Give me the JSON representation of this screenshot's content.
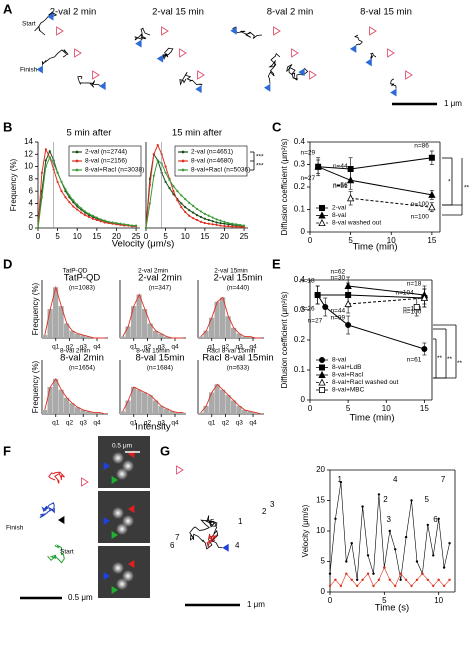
{
  "figure_labels": [
    "A",
    "B",
    "C",
    "D",
    "E",
    "F",
    "G"
  ],
  "panel_a": {
    "titles": [
      "2-val 2 min",
      "2-val 15 min",
      "8-val 2 min",
      "8-val 15 min"
    ],
    "start": "Start",
    "finish": "Finish",
    "scale": "1 μm"
  },
  "panel_f": {
    "finish": "Finish",
    "start": "Start",
    "scale": "0.5 μm",
    "image_scale": "0.5 μm"
  },
  "panel_g": {
    "scale": "1 μm",
    "labels": [
      "1",
      "2",
      "3",
      "4",
      "5",
      "6",
      "7"
    ]
  },
  "chart_data": [
    {
      "type": "line",
      "title": "5 min after",
      "ylabel": "Frequency (%)",
      "xlabel": "Velocity (μm/s)",
      "x": [
        0,
        1,
        2,
        3,
        4,
        5,
        6,
        7,
        8,
        9,
        10,
        11,
        12,
        13,
        14,
        15,
        16,
        17,
        18,
        19,
        20,
        21,
        22,
        23,
        24,
        25
      ],
      "xlim": [
        0,
        26
      ],
      "xticks": [
        0,
        5,
        10,
        15,
        20,
        25
      ],
      "ylim": [
        0,
        14
      ],
      "yticks": [
        0,
        2,
        4,
        6,
        8,
        10,
        12,
        14
      ],
      "series": [
        {
          "name": "2-val (n=2744)",
          "color": "#1b4d1b",
          "values": [
            0,
            6,
            11,
            12.5,
            11,
            9,
            7.5,
            6,
            5,
            4.2,
            3.5,
            3,
            2.5,
            2.1,
            1.8,
            1.5,
            1.3,
            1.1,
            0.9,
            0.8,
            0.7,
            0.6,
            0.5,
            0.4,
            0.3,
            0.3
          ]
        },
        {
          "name": "8-val (n=2156)",
          "color": "#e03020",
          "values": [
            0,
            9,
            12.8,
            11.5,
            9.5,
            7.5,
            6,
            5,
            4.2,
            3.5,
            3,
            2.5,
            2.1,
            1.8,
            1.5,
            1.3,
            1.1,
            0.9,
            0.8,
            0.7,
            0.6,
            0.5,
            0.4,
            0.4,
            0.3,
            0.3
          ]
        },
        {
          "name": "8-val+RacI (n=3038)",
          "color": "#3a9a3a",
          "values": [
            0,
            5,
            10,
            11.5,
            10.5,
            9,
            7.5,
            6.3,
            5.3,
            4.5,
            3.8,
            3.2,
            2.7,
            2.3,
            2,
            1.7,
            1.4,
            1.2,
            1,
            0.9,
            0.8,
            0.7,
            0.6,
            0.5,
            0.4,
            0.4
          ]
        }
      ]
    },
    {
      "type": "line",
      "title": "15 min after",
      "x": [
        0,
        1,
        2,
        3,
        4,
        5,
        6,
        7,
        8,
        9,
        10,
        11,
        12,
        13,
        14,
        15,
        16,
        17,
        18,
        19,
        20,
        21,
        22,
        23,
        24,
        25
      ],
      "xlim": [
        0,
        26
      ],
      "xticks": [
        0,
        5,
        10,
        15,
        20,
        25
      ],
      "ylim": [
        0,
        14
      ],
      "annotations": [
        "***",
        "***"
      ],
      "series": [
        {
          "name": "2-val (n=4651)",
          "color": "#1b4d1b",
          "values": [
            0,
            8,
            12,
            11,
            9,
            7.5,
            6.5,
            5.5,
            4.7,
            4,
            3.4,
            2.9,
            2.5,
            2.1,
            1.8,
            1.5,
            1.3,
            1.1,
            0.9,
            0.8,
            0.7,
            0.6,
            0.5,
            0.4,
            0.3,
            0.3
          ]
        },
        {
          "name": "8-val (n=4680)",
          "color": "#e03020",
          "values": [
            0,
            7,
            12,
            13.5,
            12,
            10,
            8,
            6,
            4.5,
            3.4,
            2.6,
            2,
            1.6,
            1.3,
            1,
            0.8,
            0.7,
            0.6,
            0.5,
            0.4,
            0.3,
            0.3,
            0.2,
            0.2,
            0.2,
            0.1
          ]
        },
        {
          "name": "8-val+RacI (n=5036)",
          "color": "#3a9a3a",
          "values": [
            0,
            4,
            8.5,
            11,
            10.5,
            9,
            7.8,
            6.8,
            6,
            5.3,
            4.7,
            4.1,
            3.6,
            3.1,
            2.7,
            2.3,
            2,
            1.7,
            1.4,
            1.2,
            1,
            0.8,
            0.7,
            0.6,
            0.5,
            0.4
          ]
        }
      ]
    },
    {
      "type": "errorline",
      "ylabel": "Diffusion coefficient (μm²/s)",
      "xlabel": "Time (min)",
      "xlim": [
        0,
        16
      ],
      "xticks": [
        0,
        5,
        10,
        15
      ],
      "ylim": [
        0,
        0.4
      ],
      "yticks": [
        0,
        0.1,
        0.2,
        0.3,
        0.4
      ],
      "annotations": [
        "*",
        "**"
      ],
      "series": [
        {
          "name": "2-val",
          "color": "#000000",
          "marker": "square",
          "x": [
            1,
            5,
            15
          ],
          "values": [
            0.29,
            0.28,
            0.33
          ],
          "errors": [
            0.04,
            0.05,
            0.03
          ],
          "n_labels": [
            "n=29",
            "n=56",
            "n=86"
          ]
        },
        {
          "name": "8-val",
          "color": "#000000",
          "marker": "triangle",
          "x": [
            1,
            5,
            15
          ],
          "values": [
            0.29,
            0.23,
            0.165
          ],
          "errors": [
            0.03,
            0.04,
            0.02
          ],
          "n_labels": [
            "n=27",
            "n=44",
            "n=100"
          ]
        },
        {
          "name": "8-val washed out",
          "color": "#000000",
          "marker": "open-triangle",
          "dash": true,
          "x": [
            5,
            15
          ],
          "values": [
            0.15,
            0.11
          ],
          "errors": [
            0.03,
            0.02
          ],
          "n_labels": [
            "n=51",
            "n=100"
          ]
        }
      ]
    },
    {
      "type": "histogram",
      "title": "TatP-QD",
      "subtitle": "(n=1083)",
      "ylabel": "Frequency (%)",
      "bins": [
        0,
        0.4,
        0.8,
        1.2,
        1.6,
        2,
        2.4,
        2.8,
        3.2,
        3.6,
        4,
        4.4,
        4.8
      ],
      "values": [
        2,
        20,
        35,
        22,
        10,
        5,
        3,
        2,
        1,
        0,
        0,
        0
      ],
      "xlim": [
        0,
        4.8
      ],
      "ylim": [
        0,
        40
      ],
      "xticks": [
        {
          "value": 1,
          "label": "q1"
        },
        {
          "value": 2,
          "label": "q2"
        },
        {
          "value": 3,
          "label": "q3"
        },
        {
          "value": 4,
          "label": "q4"
        }
      ]
    },
    {
      "type": "histogram",
      "title": "2-val 2min",
      "subtitle": "(n=347)",
      "bins": [
        0,
        0.4,
        0.8,
        1.2,
        1.6,
        2,
        2.4,
        2.8,
        3.2,
        3.6,
        4,
        4.4,
        4.8
      ],
      "values": [
        1,
        8,
        22,
        30,
        20,
        10,
        5,
        3,
        1,
        0,
        0,
        0
      ],
      "xlim": [
        0,
        4.8
      ],
      "ylim": [
        0,
        40
      ],
      "xticks": [
        {
          "value": 1,
          "label": "q1"
        },
        {
          "value": 2,
          "label": "q2"
        },
        {
          "value": 3,
          "label": "q3"
        },
        {
          "value": 4,
          "label": "q4"
        }
      ]
    },
    {
      "type": "histogram",
      "title": "2-val 15min",
      "subtitle": "(n=440)",
      "bins": [
        0,
        0.4,
        0.8,
        1.2,
        1.6,
        2,
        2.4,
        2.8,
        3.2,
        3.6,
        4,
        4.4,
        4.8
      ],
      "values": [
        1,
        5,
        14,
        25,
        28,
        15,
        7,
        3,
        1,
        1,
        0,
        0
      ],
      "xlim": [
        0,
        4.8
      ],
      "ylim": [
        0,
        40
      ],
      "xticks": [
        {
          "value": 1,
          "label": "q1"
        },
        {
          "value": 2,
          "label": "q2"
        },
        {
          "value": 3,
          "label": "q3"
        },
        {
          "value": 4,
          "label": "q4"
        }
      ]
    },
    {
      "type": "histogram",
      "title": "8-val 2min",
      "subtitle": "(n=1654)",
      "ylabel": "Frequency (%)",
      "bins": [
        0,
        0.4,
        0.8,
        1.2,
        1.6,
        2,
        2.4,
        2.8,
        3.2,
        3.6,
        4,
        4.4,
        4.8
      ],
      "values": [
        3,
        20,
        26,
        18,
        12,
        8,
        5,
        3,
        2,
        1,
        1,
        0
      ],
      "xlim": [
        0,
        4.8
      ],
      "ylim": [
        0,
        40
      ],
      "xticks": [
        {
          "value": 1,
          "label": "q1"
        },
        {
          "value": 2,
          "label": "q2"
        },
        {
          "value": 3,
          "label": "q3"
        },
        {
          "value": 4,
          "label": "q4"
        }
      ]
    },
    {
      "type": "histogram",
      "title": "8-val 15min",
      "subtitle": "(n=1684)",
      "xlabel": "Intensity",
      "bins": [
        0,
        0.4,
        0.8,
        1.2,
        1.6,
        2,
        2.4,
        2.8,
        3.2,
        3.6,
        4,
        4.4,
        4.8
      ],
      "values": [
        2,
        10,
        20,
        18,
        16,
        14,
        10,
        6,
        4,
        2,
        1,
        1
      ],
      "xlim": [
        0,
        4.8
      ],
      "ylim": [
        0,
        40
      ],
      "xticks": [
        {
          "value": 1,
          "label": "q1"
        },
        {
          "value": 2,
          "label": "q2"
        },
        {
          "value": 3,
          "label": "q3"
        },
        {
          "value": 4,
          "label": "q4"
        }
      ]
    },
    {
      "type": "histogram",
      "title": "RacI 8-val 15min",
      "subtitle": "(n=633)",
      "bins": [
        0,
        0.4,
        0.8,
        1.2,
        1.6,
        2,
        2.4,
        2.8,
        3.2,
        3.6,
        4,
        4.4,
        4.8
      ],
      "values": [
        1,
        6,
        16,
        22,
        18,
        14,
        10,
        6,
        3,
        2,
        1,
        0
      ],
      "xlim": [
        0,
        4.8
      ],
      "ylim": [
        0,
        40
      ],
      "xticks": [
        {
          "value": 1,
          "label": "q1"
        },
        {
          "value": 2,
          "label": "q2"
        },
        {
          "value": 3,
          "label": "q3"
        },
        {
          "value": 4,
          "label": "q4"
        }
      ]
    },
    {
      "type": "errorline",
      "ylabel": "Diffusion coefficient (μm²/s)",
      "xlabel": "Time (min)",
      "xlim": [
        0,
        16
      ],
      "xticks": [
        0,
        5,
        10,
        15
      ],
      "ylim": [
        0,
        0.4
      ],
      "yticks": [
        0,
        0.1,
        0.2,
        0.3,
        0.4
      ],
      "annotations": [
        "**",
        "**",
        "**"
      ],
      "series": [
        {
          "name": "8-val",
          "color": "#000000",
          "marker": "circle",
          "x": [
            1,
            2,
            5,
            15
          ],
          "values": [
            0.35,
            0.31,
            0.25,
            0.17
          ],
          "errors": [
            0.03,
            0.03,
            0.03,
            0.02
          ],
          "n_labels": [
            "n=18",
            "n=27",
            "n=44",
            "n=61"
          ]
        },
        {
          "name": "8-val+LdB",
          "color": "#000000",
          "marker": "square",
          "x": [
            1,
            5,
            15
          ],
          "values": [
            0.35,
            0.35,
            0.34
          ],
          "errors": [
            0.03,
            0.04,
            0.03
          ],
          "n_labels": [
            "n=26",
            "n=30",
            "n=100"
          ]
        },
        {
          "name": "8-val+RacI",
          "color": "#000000",
          "marker": "triangle",
          "x": [
            5,
            15
          ],
          "values": [
            0.38,
            0.35
          ],
          "errors": [
            0.03,
            0.03
          ],
          "n_labels": [
            "n=62",
            "n=100"
          ]
        },
        {
          "name": "8-val+RacI washed out",
          "color": "#000000",
          "marker": "open-triangle",
          "dash": true,
          "x": [
            5,
            15
          ],
          "values": [
            0.32,
            0.34
          ],
          "errors": [
            0.03,
            0.03
          ],
          "n_labels": [
            "n=99",
            "n=18"
          ]
        },
        {
          "name": "8-val+MBC",
          "color": "#000000",
          "marker": "open-square",
          "x": [
            14
          ],
          "values": [
            0.31
          ],
          "errors": [
            0.03
          ],
          "n_labels": [
            "n=104"
          ]
        }
      ]
    },
    {
      "type": "line",
      "ylabel": "Velocity (μm/s)",
      "xlabel": "Time (s)",
      "dots": true,
      "x": [
        0,
        0.5,
        1,
        1.5,
        2,
        2.5,
        3,
        3.5,
        4,
        4.5,
        5,
        5.5,
        6,
        6.5,
        7,
        7.5,
        8,
        8.5,
        9,
        9.5,
        10,
        10.5,
        11
      ],
      "xlim": [
        0,
        11.5
      ],
      "xticks": [
        0,
        5,
        10
      ],
      "ylim": [
        0,
        20
      ],
      "yticks": [
        0,
        5,
        10,
        15,
        20
      ],
      "series": [
        {
          "color": "#000000",
          "values": [
            3,
            12,
            18,
            5,
            8,
            2,
            14,
            6,
            3,
            16,
            4,
            10,
            7,
            2,
            9,
            15,
            5,
            3,
            11,
            6,
            12,
            4,
            8
          ]
        },
        {
          "color": "#e03020",
          "values": [
            1,
            2,
            1,
            3,
            2,
            1,
            2,
            3,
            1,
            2,
            4,
            2,
            1,
            3,
            2,
            1,
            2,
            3,
            2,
            1,
            2,
            1,
            2
          ]
        }
      ]
    }
  ]
}
